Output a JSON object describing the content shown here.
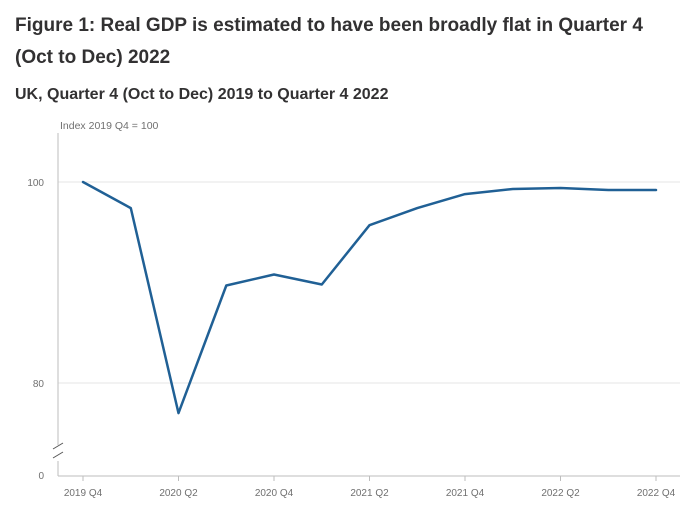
{
  "chart_data": {
    "type": "line",
    "title": "Figure 1: Real GDP is estimated to have been broadly flat in Quarter 4 (Oct to Dec) 2022",
    "subtitle": "UK, Quarter 4 (Oct to Dec) 2019 to Quarter 4 2022",
    "ylabel": "Index 2019 Q4 = 100",
    "xlabel": "",
    "x": [
      "2019 Q4",
      "2020 Q1",
      "2020 Q2",
      "2020 Q3",
      "2020 Q4",
      "2021 Q1",
      "2021 Q2",
      "2021 Q3",
      "2021 Q4",
      "2022 Q1",
      "2022 Q2",
      "2022 Q3",
      "2022 Q4"
    ],
    "x_tick_labels": [
      "2019 Q4",
      "2020 Q2",
      "2020 Q4",
      "2021 Q2",
      "2021 Q4",
      "2022 Q2",
      "2022 Q4"
    ],
    "series": [
      {
        "name": "Real GDP",
        "color": "#206095",
        "values": [
          100.0,
          97.4,
          77.0,
          89.7,
          90.8,
          89.8,
          95.7,
          97.4,
          98.8,
          99.3,
          99.4,
          99.2,
          99.2
        ]
      }
    ],
    "y_tick_labels": [
      "0",
      "80",
      "100"
    ],
    "ylim": [
      77,
      105
    ],
    "axis_break": true,
    "grid": true
  }
}
